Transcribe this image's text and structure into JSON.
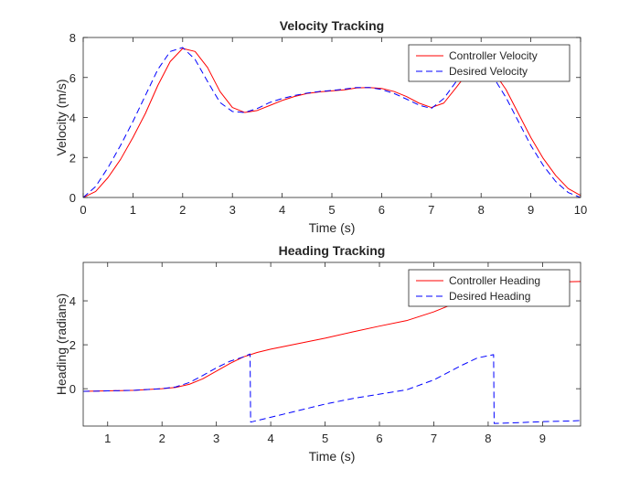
{
  "chart_data": [
    {
      "type": "line",
      "title": "Velocity Tracking",
      "xlabel": "Time (s)",
      "ylabel": "Velocity (m/s)",
      "xlim": [
        0,
        10
      ],
      "ylim": [
        0,
        8
      ],
      "xticks": [
        0,
        1,
        2,
        3,
        4,
        5,
        6,
        7,
        8,
        9,
        10
      ],
      "yticks": [
        0,
        2,
        4,
        6,
        8
      ],
      "grid": false,
      "legend_location": "top-right",
      "series": [
        {
          "name": "Controller Velocity",
          "color": "#ff0000",
          "style": "solid",
          "x": [
            0,
            0.25,
            0.5,
            0.75,
            1.0,
            1.25,
            1.5,
            1.75,
            2.0,
            2.25,
            2.5,
            2.75,
            3.0,
            3.25,
            3.5,
            3.75,
            4.0,
            4.25,
            4.5,
            4.75,
            5.0,
            5.25,
            5.5,
            5.75,
            6.0,
            6.25,
            6.5,
            6.75,
            7.0,
            7.25,
            7.5,
            7.75,
            8.0,
            8.25,
            8.5,
            8.75,
            9.0,
            9.25,
            9.5,
            9.75,
            10.0
          ],
          "values": [
            0.0,
            0.3,
            1.0,
            1.9,
            3.0,
            4.2,
            5.6,
            6.8,
            7.45,
            7.3,
            6.5,
            5.3,
            4.5,
            4.25,
            4.35,
            4.6,
            4.85,
            5.05,
            5.2,
            5.28,
            5.33,
            5.38,
            5.48,
            5.5,
            5.45,
            5.3,
            5.05,
            4.72,
            4.5,
            4.72,
            5.5,
            6.3,
            6.6,
            6.3,
            5.4,
            4.2,
            3.0,
            1.95,
            1.1,
            0.45,
            0.1
          ]
        },
        {
          "name": "Desired Velocity",
          "color": "#0000ff",
          "style": "dashed",
          "x": [
            0,
            0.25,
            0.5,
            0.75,
            1.0,
            1.25,
            1.5,
            1.75,
            2.0,
            2.25,
            2.5,
            2.75,
            3.0,
            3.25,
            3.5,
            3.75,
            4.0,
            4.25,
            4.5,
            4.75,
            5.0,
            5.25,
            5.5,
            5.75,
            6.0,
            6.25,
            6.5,
            6.75,
            7.0,
            7.25,
            7.5,
            7.75,
            8.0,
            8.25,
            8.5,
            8.75,
            9.0,
            9.25,
            9.5,
            9.75,
            10.0
          ],
          "values": [
            0.0,
            0.55,
            1.5,
            2.6,
            3.8,
            5.1,
            6.4,
            7.3,
            7.5,
            6.9,
            5.8,
            4.75,
            4.3,
            4.25,
            4.45,
            4.75,
            4.95,
            5.1,
            5.22,
            5.3,
            5.35,
            5.42,
            5.5,
            5.5,
            5.4,
            5.2,
            4.92,
            4.62,
            4.45,
            4.95,
            5.8,
            6.5,
            6.55,
            6.0,
            5.0,
            3.8,
            2.6,
            1.6,
            0.8,
            0.25,
            0.0
          ]
        }
      ]
    },
    {
      "type": "line",
      "title": "Heading Tracking",
      "xlabel": "Time (s)",
      "ylabel": "Heading (radians)",
      "xlim": [
        0.55,
        9.7
      ],
      "ylim": [
        -1.7,
        5.75
      ],
      "xticks": [
        1,
        2,
        3,
        4,
        5,
        6,
        7,
        8,
        9
      ],
      "yticks": [
        0,
        2,
        4
      ],
      "grid": false,
      "legend_location": "top-right",
      "series": [
        {
          "name": "Controller Heading",
          "color": "#ff0000",
          "style": "solid",
          "x": [
            0.55,
            1.0,
            1.5,
            2.0,
            2.25,
            2.5,
            2.75,
            3.0,
            3.25,
            3.5,
            3.75,
            4.0,
            4.5,
            5.0,
            5.5,
            6.0,
            6.5,
            7.0,
            7.5,
            8.0,
            8.5,
            9.0,
            9.5,
            9.7
          ],
          "values": [
            -0.12,
            -0.1,
            -0.07,
            0.0,
            0.06,
            0.2,
            0.45,
            0.8,
            1.15,
            1.45,
            1.65,
            1.8,
            2.05,
            2.3,
            2.58,
            2.85,
            3.1,
            3.5,
            4.0,
            4.45,
            4.72,
            4.82,
            4.87,
            4.88
          ]
        },
        {
          "name": "Desired Heading",
          "color": "#0000ff",
          "style": "dashed",
          "x": [
            0.55,
            1.0,
            1.5,
            2.0,
            2.25,
            2.5,
            2.75,
            3.0,
            3.25,
            3.5,
            3.62,
            3.63,
            4.0,
            4.5,
            5.0,
            5.5,
            6.0,
            6.5,
            7.0,
            7.5,
            7.8,
            8.1,
            8.11,
            8.5,
            9.0,
            9.5,
            9.7
          ],
          "values": [
            -0.12,
            -0.1,
            -0.07,
            0.0,
            0.08,
            0.28,
            0.6,
            0.95,
            1.25,
            1.45,
            1.58,
            -1.52,
            -1.3,
            -1.0,
            -0.7,
            -0.45,
            -0.25,
            -0.05,
            0.4,
            1.05,
            1.4,
            1.55,
            -1.58,
            -1.55,
            -1.5,
            -1.47,
            -1.45
          ]
        }
      ]
    }
  ]
}
